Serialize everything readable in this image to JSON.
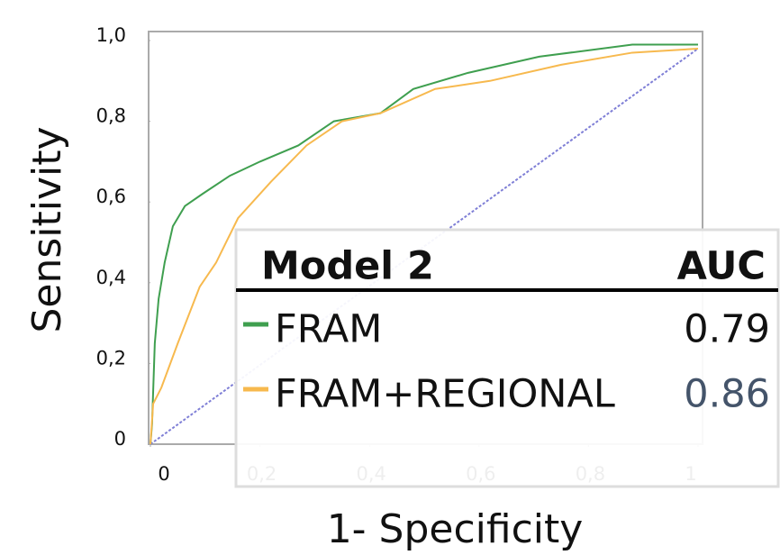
{
  "chart_data": {
    "type": "line",
    "x_label": "1- Specificity",
    "y_label": "Sensitivity",
    "xlim": [
      0,
      1
    ],
    "ylim": [
      0,
      1
    ],
    "xticks": [
      0,
      {
        "value": 0.2,
        "label": "0,2"
      },
      {
        "value": 0.4,
        "label": "0,4"
      },
      {
        "value": 0.6,
        "label": "0,6"
      },
      {
        "value": 0.8,
        "label": "0,8"
      },
      1
    ],
    "yticks": [
      0,
      {
        "value": 0.2,
        "label": "0,2"
      },
      {
        "value": 0.4,
        "label": "0,4"
      },
      {
        "value": 0.6,
        "label": "0,6"
      },
      {
        "value": 0.8,
        "label": "0,8"
      },
      {
        "value": 1,
        "label": "1,0"
      }
    ],
    "legend_title": "Model 2",
    "legend_value_header": "AUC",
    "diagonal": {
      "x": [
        0,
        1
      ],
      "y": [
        0,
        0.98
      ],
      "color": "#7f7fd6"
    },
    "series": [
      {
        "name": "FRAM",
        "color": "#3f9f4f",
        "auc": 0.79,
        "x": [
          0,
          0.003,
          0.008,
          0.015,
          0.026,
          0.041,
          0.063,
          0.095,
          0.145,
          0.2,
          0.27,
          0.335,
          0.42,
          0.48,
          0.58,
          0.71,
          0.88,
          1
        ],
        "y": [
          0,
          0.05,
          0.25,
          0.36,
          0.45,
          0.54,
          0.59,
          0.62,
          0.665,
          0.7,
          0.74,
          0.8,
          0.82,
          0.88,
          0.92,
          0.96,
          0.99,
          0.99
        ]
      },
      {
        "name": "FRAM+REGIONAL",
        "color": "#f7b94e",
        "auc": 0.86,
        "x": [
          0,
          0.005,
          0.02,
          0.05,
          0.09,
          0.12,
          0.16,
          0.22,
          0.285,
          0.35,
          0.42,
          0.52,
          0.62,
          0.75,
          0.88,
          1
        ],
        "y": [
          0,
          0.1,
          0.14,
          0.25,
          0.39,
          0.45,
          0.56,
          0.65,
          0.74,
          0.8,
          0.82,
          0.88,
          0.9,
          0.94,
          0.97,
          0.98
        ]
      }
    ]
  }
}
